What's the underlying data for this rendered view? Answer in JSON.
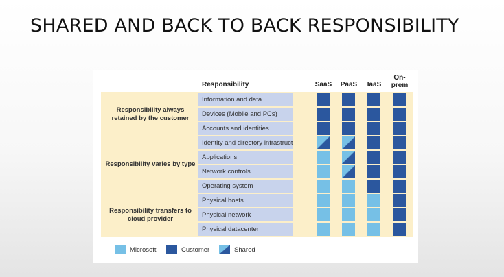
{
  "slide": {
    "title": "SHARED AND BACK TO BACK RESPONSIBILITY"
  },
  "diagram": {
    "header": {
      "responsibility": "Responsibility"
    },
    "columns": [
      {
        "key": "saas",
        "label": "SaaS"
      },
      {
        "key": "paas",
        "label": "PaaS"
      },
      {
        "key": "iaas",
        "label": "IaaS"
      },
      {
        "key": "onprem",
        "label": "On-\nprem"
      }
    ],
    "groups": [
      {
        "label": "Responsibility always retained by the customer",
        "rows": [
          0,
          2
        ]
      },
      {
        "label": "Responsibility varies by type",
        "rows": [
          3,
          6
        ]
      },
      {
        "label": "Responsibility transfers to cloud provider",
        "rows": [
          7,
          9
        ]
      }
    ],
    "rows": [
      {
        "label": "Information and data",
        "cells": [
          "customer",
          "customer",
          "customer",
          "customer"
        ]
      },
      {
        "label": "Devices (Mobile and PCs)",
        "cells": [
          "customer",
          "customer",
          "customer",
          "customer"
        ]
      },
      {
        "label": "Accounts and identities",
        "cells": [
          "customer",
          "customer",
          "customer",
          "customer"
        ]
      },
      {
        "label": "Identity and directory infrastructure",
        "cells": [
          "shared",
          "shared",
          "customer",
          "customer"
        ]
      },
      {
        "label": "Applications",
        "cells": [
          "microsoft",
          "shared",
          "customer",
          "customer"
        ]
      },
      {
        "label": "Network controls",
        "cells": [
          "microsoft",
          "shared",
          "customer",
          "customer"
        ]
      },
      {
        "label": "Operating system",
        "cells": [
          "microsoft",
          "microsoft",
          "customer",
          "customer"
        ]
      },
      {
        "label": "Physical hosts",
        "cells": [
          "microsoft",
          "microsoft",
          "microsoft",
          "customer"
        ]
      },
      {
        "label": "Physical network",
        "cells": [
          "microsoft",
          "microsoft",
          "microsoft",
          "customer"
        ]
      },
      {
        "label": "Physical datacenter",
        "cells": [
          "microsoft",
          "microsoft",
          "microsoft",
          "customer"
        ]
      }
    ],
    "legend": {
      "microsoft": "Microsoft",
      "customer": "Customer",
      "shared": "Shared"
    },
    "colors": {
      "microsoft": "#76c0e6",
      "customer": "#2b579e",
      "band": "#fcefc9",
      "row_label": "#c8d3ec"
    }
  }
}
